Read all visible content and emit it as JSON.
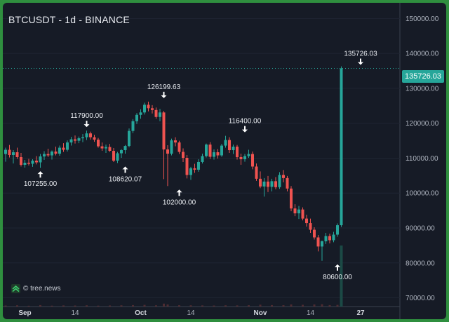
{
  "title": "BTCUSDT - 1d - BINANCE",
  "watermark": "© tree.news",
  "last_price_label": "135726.03",
  "colors": {
    "up": "#26a69a",
    "down": "#ef5350",
    "background": "#161b26",
    "border": "#2f8f3f",
    "current_price_line": "#26a69a"
  },
  "chart_data": {
    "type": "candlestick",
    "timeframe": "1d",
    "symbol": "BTCUSDT",
    "exchange": "BINANCE",
    "y_ticks": [
      "150000.00",
      "140000.00",
      "130000.00",
      "120000.00",
      "110000.00",
      "100000.00",
      "90000.00",
      "80000.00",
      "70000.00"
    ],
    "y_range": [
      67500,
      154500
    ],
    "x_ticks": [
      {
        "label": "Sep",
        "day": 5,
        "bold": true
      },
      {
        "label": "14",
        "day": 18,
        "bold": false
      },
      {
        "label": "Oct",
        "day": 35,
        "bold": true
      },
      {
        "label": "14",
        "day": 48,
        "bold": false
      },
      {
        "label": "Nov",
        "day": 66,
        "bold": true
      },
      {
        "label": "14",
        "day": 79,
        "bold": false
      },
      {
        "label": "27",
        "day": 92,
        "bold": true
      }
    ],
    "current_price": 135726.03,
    "annotations": [
      {
        "day": 9,
        "price": 107255.0,
        "label": "107255.00",
        "position": "below"
      },
      {
        "day": 21,
        "price": 117900.0,
        "label": "117900.00",
        "position": "above"
      },
      {
        "day": 31,
        "price": 108620.07,
        "label": "108620.07",
        "position": "below"
      },
      {
        "day": 41,
        "price": 126199.63,
        "label": "126199.63",
        "position": "above"
      },
      {
        "day": 45,
        "price": 102000.0,
        "label": "102000.00",
        "position": "below"
      },
      {
        "day": 62,
        "price": 116400.0,
        "label": "116400.00",
        "position": "above"
      },
      {
        "day": 86,
        "price": 80600.0,
        "label": "80600.00",
        "position": "below"
      },
      {
        "day": 92,
        "price": 135726.03,
        "label": "135726.03",
        "position": "above"
      }
    ],
    "candles": [
      [
        0,
        111200,
        113000,
        109000,
        112400
      ],
      [
        1,
        112400,
        113800,
        110200,
        110900
      ],
      [
        2,
        110900,
        112300,
        108500,
        111700
      ],
      [
        3,
        111700,
        113000,
        109800,
        110300
      ],
      [
        4,
        110300,
        111500,
        107600,
        108100
      ],
      [
        5,
        108100,
        109500,
        107300,
        108700
      ],
      [
        6,
        108700,
        109800,
        107900,
        108400
      ],
      [
        7,
        108400,
        109700,
        107500,
        109300
      ],
      [
        8,
        109300,
        110600,
        108200,
        108800
      ],
      [
        9,
        108800,
        111200,
        107255,
        110500
      ],
      [
        10,
        110500,
        112000,
        109500,
        111200
      ],
      [
        11,
        111200,
        112700,
        110300,
        110800
      ],
      [
        12,
        110800,
        112200,
        109600,
        111900
      ],
      [
        13,
        111900,
        113300,
        110800,
        111300
      ],
      [
        14,
        111300,
        113600,
        110700,
        113000
      ],
      [
        15,
        113000,
        114300,
        111800,
        112400
      ],
      [
        16,
        112400,
        115100,
        111900,
        114500
      ],
      [
        17,
        114500,
        116100,
        113600,
        115400
      ],
      [
        18,
        115400,
        116500,
        114200,
        115000
      ],
      [
        19,
        115000,
        116200,
        114300,
        115700
      ],
      [
        20,
        115700,
        116900,
        114600,
        116000
      ],
      [
        21,
        116000,
        117900,
        115200,
        117100
      ],
      [
        22,
        117100,
        117600,
        115300,
        116000
      ],
      [
        23,
        116000,
        116700,
        114700,
        115300
      ],
      [
        24,
        115300,
        115800,
        113000,
        113400
      ],
      [
        25,
        113400,
        114500,
        112100,
        112800
      ],
      [
        26,
        112800,
        113900,
        111500,
        113200
      ],
      [
        27,
        113200,
        114100,
        111800,
        112100
      ],
      [
        28,
        112100,
        112900,
        108900,
        109300
      ],
      [
        29,
        109300,
        111800,
        108620,
        111400
      ],
      [
        30,
        111400,
        112600,
        110100,
        112300
      ],
      [
        31,
        112300,
        113800,
        111300,
        113500
      ],
      [
        32,
        113500,
        118500,
        113100,
        117800
      ],
      [
        33,
        117800,
        121200,
        117200,
        120600
      ],
      [
        34,
        120600,
        122900,
        119800,
        122400
      ],
      [
        35,
        122400,
        124000,
        121300,
        123100
      ],
      [
        36,
        123100,
        125900,
        122500,
        125300
      ],
      [
        37,
        125300,
        126199,
        123400,
        124300
      ],
      [
        38,
        124300,
        125200,
        122800,
        123800
      ],
      [
        39,
        123800,
        124500,
        121300,
        121800
      ],
      [
        40,
        121800,
        124100,
        120600,
        123100
      ],
      [
        41,
        123100,
        123500,
        104000,
        112500
      ],
      [
        42,
        112500,
        113700,
        102000,
        111300
      ],
      [
        43,
        111300,
        115600,
        110800,
        115100
      ],
      [
        44,
        115100,
        116000,
        113400,
        114500
      ],
      [
        45,
        114500,
        115000,
        111200,
        111800
      ],
      [
        46,
        111800,
        112800,
        108900,
        110100
      ],
      [
        47,
        110100,
        110900,
        104200,
        105200
      ],
      [
        48,
        105200,
        107500,
        103800,
        107100
      ],
      [
        49,
        107100,
        108400,
        105800,
        106700
      ],
      [
        50,
        106700,
        109700,
        106100,
        108900
      ],
      [
        51,
        108900,
        111300,
        108500,
        110600
      ],
      [
        52,
        110600,
        114200,
        110200,
        113900
      ],
      [
        53,
        113900,
        114600,
        109800,
        110400
      ],
      [
        54,
        110400,
        112500,
        109600,
        111700
      ],
      [
        55,
        111700,
        112600,
        109900,
        110800
      ],
      [
        56,
        110800,
        114100,
        110400,
        113600
      ],
      [
        57,
        113600,
        116400,
        113000,
        115200
      ],
      [
        58,
        115200,
        116000,
        111500,
        112300
      ],
      [
        59,
        112300,
        113900,
        111200,
        113300
      ],
      [
        60,
        113300,
        113800,
        109600,
        110300
      ],
      [
        61,
        110300,
        111300,
        108100,
        109700
      ],
      [
        62,
        109700,
        111200,
        109000,
        110600
      ],
      [
        63,
        110600,
        112400,
        110100,
        111200
      ],
      [
        64,
        111200,
        111900,
        106800,
        107600
      ],
      [
        65,
        107600,
        108500,
        103500,
        104100
      ],
      [
        66,
        104100,
        106200,
        101400,
        101900
      ],
      [
        67,
        101900,
        104300,
        99000,
        103300
      ],
      [
        68,
        103300,
        104900,
        100300,
        101800
      ],
      [
        69,
        101800,
        104100,
        100500,
        103400
      ],
      [
        70,
        103400,
        104600,
        101100,
        101700
      ],
      [
        71,
        101700,
        106000,
        101200,
        105200
      ],
      [
        72,
        105200,
        106600,
        103100,
        104300
      ],
      [
        73,
        104300,
        104900,
        100500,
        101300
      ],
      [
        74,
        101300,
        102000,
        94800,
        95600
      ],
      [
        75,
        95600,
        96800,
        93400,
        94200
      ],
      [
        76,
        94200,
        96300,
        92600,
        95300
      ],
      [
        77,
        95300,
        95900,
        92200,
        92700
      ],
      [
        78,
        92700,
        93800,
        90400,
        91400
      ],
      [
        79,
        91400,
        92700,
        88600,
        89500
      ],
      [
        80,
        89500,
        90200,
        86700,
        87300
      ],
      [
        81,
        87300,
        88000,
        83300,
        84700
      ],
      [
        82,
        84700,
        86400,
        80600,
        86200
      ],
      [
        83,
        86200,
        88600,
        85400,
        87700
      ],
      [
        84,
        87700,
        88400,
        85600,
        86500
      ],
      [
        85,
        86500,
        88900,
        85900,
        88100
      ],
      [
        86,
        88100,
        91300,
        87500,
        90800
      ],
      [
        87,
        90800,
        136300,
        90300,
        135726
      ]
    ],
    "volume": [
      [
        0,
        0.25
      ],
      [
        3,
        0.3
      ],
      [
        6,
        0.2
      ],
      [
        9,
        0.35
      ],
      [
        12,
        0.22
      ],
      [
        15,
        0.28
      ],
      [
        18,
        0.25
      ],
      [
        21,
        0.3
      ],
      [
        24,
        0.22
      ],
      [
        27,
        0.26
      ],
      [
        30,
        0.3
      ],
      [
        33,
        0.35
      ],
      [
        36,
        0.4
      ],
      [
        39,
        0.3
      ],
      [
        41,
        0.7
      ],
      [
        42,
        0.5
      ],
      [
        45,
        0.32
      ],
      [
        48,
        0.3
      ],
      [
        51,
        0.28
      ],
      [
        54,
        0.25
      ],
      [
        57,
        0.3
      ],
      [
        60,
        0.28
      ],
      [
        63,
        0.32
      ],
      [
        66,
        0.45
      ],
      [
        69,
        0.35
      ],
      [
        72,
        0.33
      ],
      [
        74,
        0.5
      ],
      [
        77,
        0.42
      ],
      [
        80,
        0.5
      ],
      [
        82,
        0.55
      ],
      [
        84,
        0.35
      ],
      [
        86,
        0.4
      ],
      [
        87,
        0.9
      ]
    ],
    "volume_tall_bar": {
      "day": 87,
      "top_price": 85000
    }
  }
}
